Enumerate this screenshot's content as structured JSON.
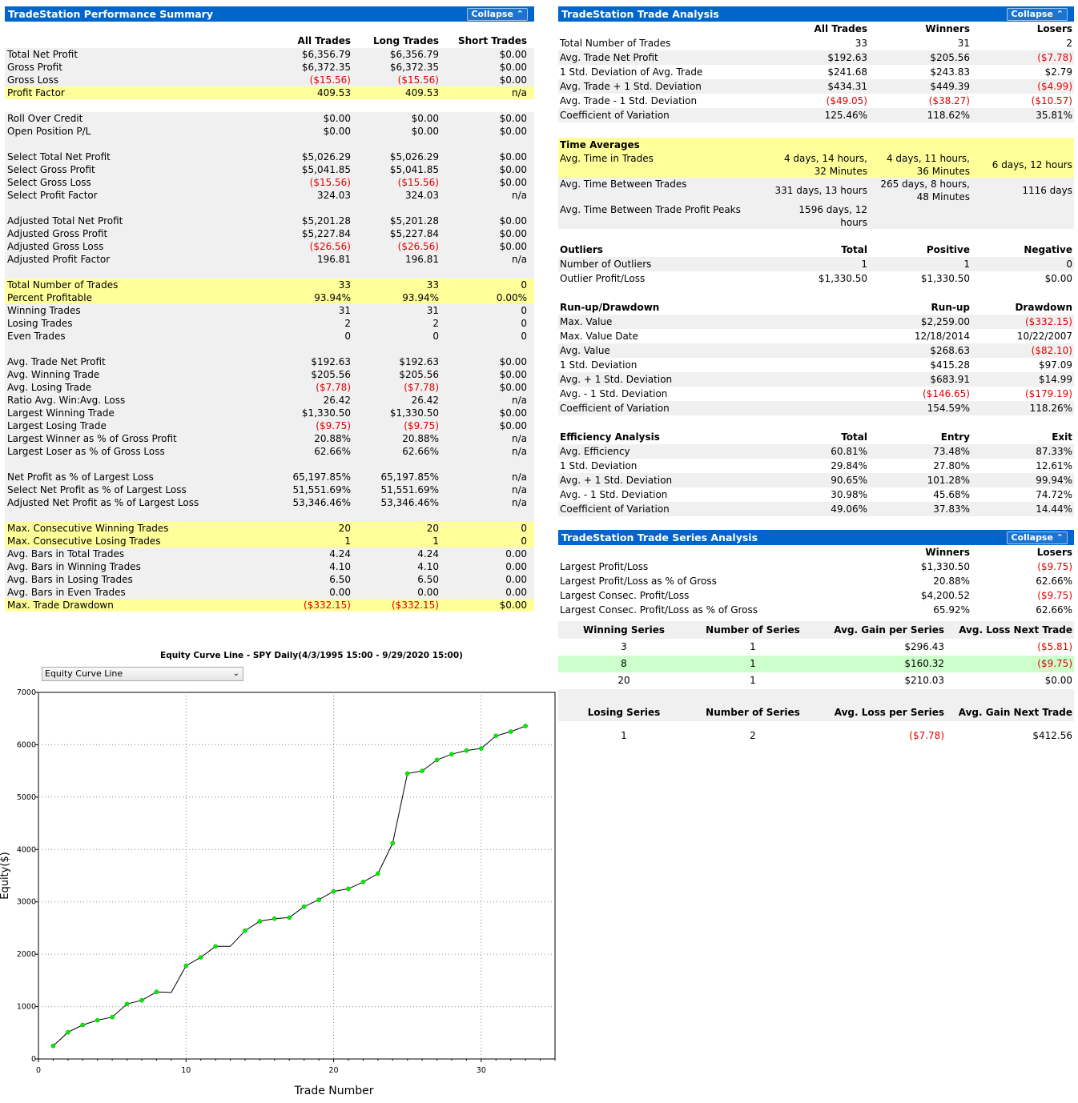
{
  "perf": {
    "title": "TradeStation Performance Summary",
    "collapse": "Collapse",
    "headers": [
      "All Trades",
      "Long Trades",
      "Short Trades"
    ],
    "rows": [
      {
        "label": "Total Net Profit",
        "v": [
          "$6,356.79",
          "$6,356.79",
          "$0.00"
        ],
        "bg": "shade"
      },
      {
        "label": "Gross Profit",
        "v": [
          "$6,372.35",
          "$6,372.35",
          "$0.00"
        ],
        "bg": "shade"
      },
      {
        "label": "Gross Loss",
        "v": [
          "($15.56)",
          "($15.56)",
          "$0.00"
        ],
        "bg": "shade"
      },
      {
        "label": "Profit Factor",
        "v": [
          "409.53",
          "409.53",
          "n/a"
        ],
        "bg": "yellow"
      },
      {
        "label": "",
        "v": [
          "",
          "",
          ""
        ],
        "bg": "white"
      },
      {
        "label": "Roll Over Credit",
        "v": [
          "$0.00",
          "$0.00",
          "$0.00"
        ],
        "bg": "shade"
      },
      {
        "label": "Open Position P/L",
        "v": [
          "$0.00",
          "$0.00",
          "$0.00"
        ],
        "bg": "shade"
      },
      {
        "label": "",
        "v": [
          "",
          "",
          ""
        ],
        "bg": "shade"
      },
      {
        "label": "Select Total Net Profit",
        "v": [
          "$5,026.29",
          "$5,026.29",
          "$0.00"
        ],
        "bg": "shade"
      },
      {
        "label": "Select Gross Profit",
        "v": [
          "$5,041.85",
          "$5,041.85",
          "$0.00"
        ],
        "bg": "shade"
      },
      {
        "label": "Select Gross Loss",
        "v": [
          "($15.56)",
          "($15.56)",
          "$0.00"
        ],
        "bg": "shade"
      },
      {
        "label": "Select Profit Factor",
        "v": [
          "324.03",
          "324.03",
          "n/a"
        ],
        "bg": "shade"
      },
      {
        "label": "",
        "v": [
          "",
          "",
          ""
        ],
        "bg": "shade"
      },
      {
        "label": "Adjusted Total Net Profit",
        "v": [
          "$5,201.28",
          "$5,201.28",
          "$0.00"
        ],
        "bg": "shade"
      },
      {
        "label": "Adjusted Gross Profit",
        "v": [
          "$5,227.84",
          "$5,227.84",
          "$0.00"
        ],
        "bg": "shade"
      },
      {
        "label": "Adjusted Gross Loss",
        "v": [
          "($26.56)",
          "($26.56)",
          "$0.00"
        ],
        "bg": "shade"
      },
      {
        "label": "Adjusted Profit Factor",
        "v": [
          "196.81",
          "196.81",
          "n/a"
        ],
        "bg": "shade"
      },
      {
        "label": "",
        "v": [
          "",
          "",
          ""
        ],
        "bg": "shade"
      },
      {
        "label": "Total Number of Trades",
        "v": [
          "33",
          "33",
          "0"
        ],
        "bg": "yellow"
      },
      {
        "label": "Percent Profitable",
        "v": [
          "93.94%",
          "93.94%",
          "0.00%"
        ],
        "bg": "yellow"
      },
      {
        "label": "Winning Trades",
        "v": [
          "31",
          "31",
          "0"
        ],
        "bg": "shade"
      },
      {
        "label": "Losing Trades",
        "v": [
          "2",
          "2",
          "0"
        ],
        "bg": "shade"
      },
      {
        "label": "Even Trades",
        "v": [
          "0",
          "0",
          "0"
        ],
        "bg": "shade"
      },
      {
        "label": "",
        "v": [
          "",
          "",
          ""
        ],
        "bg": "shade"
      },
      {
        "label": "Avg. Trade Net Profit",
        "v": [
          "$192.63",
          "$192.63",
          "$0.00"
        ],
        "bg": "shade"
      },
      {
        "label": "Avg. Winning Trade",
        "v": [
          "$205.56",
          "$205.56",
          "$0.00"
        ],
        "bg": "shade"
      },
      {
        "label": "Avg. Losing Trade",
        "v": [
          "($7.78)",
          "($7.78)",
          "$0.00"
        ],
        "bg": "shade"
      },
      {
        "label": "Ratio Avg. Win:Avg. Loss",
        "v": [
          "26.42",
          "26.42",
          "n/a"
        ],
        "bg": "shade"
      },
      {
        "label": "Largest Winning Trade",
        "v": [
          "$1,330.50",
          "$1,330.50",
          "$0.00"
        ],
        "bg": "shade"
      },
      {
        "label": "Largest Losing Trade",
        "v": [
          "($9.75)",
          "($9.75)",
          "$0.00"
        ],
        "bg": "shade"
      },
      {
        "label": "Largest Winner as % of Gross Profit",
        "v": [
          "20.88%",
          "20.88%",
          "n/a"
        ],
        "bg": "shade"
      },
      {
        "label": "Largest Loser as % of Gross Loss",
        "v": [
          "62.66%",
          "62.66%",
          "n/a"
        ],
        "bg": "shade"
      },
      {
        "label": "",
        "v": [
          "",
          "",
          ""
        ],
        "bg": "shade"
      },
      {
        "label": "Net Profit as % of Largest Loss",
        "v": [
          "65,197.85%",
          "65,197.85%",
          "n/a"
        ],
        "bg": "shade"
      },
      {
        "label": "Select Net Profit as % of Largest Loss",
        "v": [
          "51,551.69%",
          "51,551.69%",
          "n/a"
        ],
        "bg": "shade"
      },
      {
        "label": "Adjusted Net Profit as % of Largest Loss",
        "v": [
          "53,346.46%",
          "53,346.46%",
          "n/a"
        ],
        "bg": "shade"
      },
      {
        "label": "",
        "v": [
          "",
          "",
          ""
        ],
        "bg": "shade"
      },
      {
        "label": "Max. Consecutive Winning Trades",
        "v": [
          "20",
          "20",
          "0"
        ],
        "bg": "yellow"
      },
      {
        "label": "Max. Consecutive Losing Trades",
        "v": [
          "1",
          "1",
          "0"
        ],
        "bg": "yellow"
      },
      {
        "label": "Avg. Bars in Total Trades",
        "v": [
          "4.24",
          "4.24",
          "0.00"
        ],
        "bg": "shade"
      },
      {
        "label": "Avg. Bars in Winning Trades",
        "v": [
          "4.10",
          "4.10",
          "0.00"
        ],
        "bg": "shade"
      },
      {
        "label": "Avg. Bars in Losing Trades",
        "v": [
          "6.50",
          "6.50",
          "0.00"
        ],
        "bg": "shade"
      },
      {
        "label": "Avg. Bars in Even Trades",
        "v": [
          "0.00",
          "0.00",
          "0.00"
        ],
        "bg": "shade"
      },
      {
        "label": "Max. Trade Drawdown",
        "v": [
          "($332.15)",
          "($332.15)",
          "$0.00"
        ],
        "bg": "yellow"
      }
    ]
  },
  "analysis": {
    "title": "TradeStation Trade Analysis",
    "collapse": "Collapse",
    "headers": [
      "All Trades",
      "Winners",
      "Losers"
    ],
    "rows": [
      {
        "label": "Total Number of Trades",
        "v": [
          "33",
          "31",
          "2"
        ]
      },
      {
        "label": "Avg. Trade Net Profit",
        "v": [
          "$192.63",
          "$205.56",
          "($7.78)"
        ]
      },
      {
        "label": "1 Std. Deviation of Avg. Trade",
        "v": [
          "$241.68",
          "$243.83",
          "$2.79"
        ]
      },
      {
        "label": "Avg. Trade + 1 Std. Deviation",
        "v": [
          "$434.31",
          "$449.39",
          "($4.99)"
        ]
      },
      {
        "label": "Avg. Trade - 1 Std. Deviation",
        "v": [
          "($49.05)",
          "($38.27)",
          "($10.57)"
        ]
      },
      {
        "label": "Coefficient of Variation",
        "v": [
          "125.46%",
          "118.62%",
          "35.81%"
        ]
      }
    ],
    "time": {
      "title": "Time Averages",
      "rows": [
        {
          "label": "Avg. Time in Trades",
          "v": [
            [
              "4 days, 14 hours,",
              "32 Minutes"
            ],
            [
              "4 days, 11 hours,",
              "36 Minutes"
            ],
            [
              "6 days, 12 hours"
            ]
          ]
        },
        {
          "label": "Avg. Time Between Trades",
          "v": [
            [
              "331 days, 13 hours"
            ],
            [
              "265 days, 8 hours,",
              "48 Minutes"
            ],
            [
              "1116 days"
            ]
          ]
        },
        {
          "label": "Avg. Time Between Trade Profit Peaks",
          "v": [
            [
              "1596 days, 12",
              "hours"
            ],
            [
              ""
            ],
            [
              ""
            ]
          ]
        }
      ]
    },
    "outliers": {
      "title": "Outliers",
      "headers": [
        "Total",
        "Positive",
        "Negative"
      ],
      "rows": [
        {
          "label": "Number of Outliers",
          "v": [
            "1",
            "1",
            "0"
          ]
        },
        {
          "label": "Outlier Profit/Loss",
          "v": [
            "$1,330.50",
            "$1,330.50",
            "$0.00"
          ]
        }
      ]
    },
    "runup": {
      "title": "Run-up/Drawdown",
      "headers": [
        "Run-up",
        "Drawdown"
      ],
      "rows": [
        {
          "label": "Max. Value",
          "v": [
            "$2,259.00",
            "($332.15)"
          ]
        },
        {
          "label": "Max. Value Date",
          "v": [
            "12/18/2014",
            "10/22/2007"
          ]
        },
        {
          "label": "Avg. Value",
          "v": [
            "$268.63",
            "($82.10)"
          ]
        },
        {
          "label": "1 Std. Deviation",
          "v": [
            "$415.28",
            "$97.09"
          ]
        },
        {
          "label": "Avg. + 1 Std. Deviation",
          "v": [
            "$683.91",
            "$14.99"
          ]
        },
        {
          "label": "Avg. - 1 Std. Deviation",
          "v": [
            "($146.65)",
            "($179.19)"
          ]
        },
        {
          "label": "Coefficient of Variation",
          "v": [
            "154.59%",
            "118.26%"
          ]
        }
      ]
    },
    "efficiency": {
      "title": "Efficiency Analysis",
      "headers": [
        "Total",
        "Entry",
        "Exit"
      ],
      "rows": [
        {
          "label": "Avg. Efficiency",
          "v": [
            "60.81%",
            "73.48%",
            "87.33%"
          ]
        },
        {
          "label": "1 Std. Deviation",
          "v": [
            "29.84%",
            "27.80%",
            "12.61%"
          ]
        },
        {
          "label": "Avg. + 1 Std. Deviation",
          "v": [
            "90.65%",
            "101.28%",
            "99.94%"
          ]
        },
        {
          "label": "Avg. - 1 Std. Deviation",
          "v": [
            "30.98%",
            "45.68%",
            "74.72%"
          ]
        },
        {
          "label": "Coefficient of Variation",
          "v": [
            "49.06%",
            "37.83%",
            "14.44%"
          ]
        }
      ]
    }
  },
  "series": {
    "title": "TradeStation Trade Series Analysis",
    "collapse": "Collapse",
    "headers": [
      "Winners",
      "Losers"
    ],
    "rows": [
      {
        "label": "Largest Profit/Loss",
        "v": [
          "$1,330.50",
          "($9.75)"
        ]
      },
      {
        "label": "Largest Profit/Loss as % of Gross",
        "v": [
          "20.88%",
          "62.66%"
        ]
      },
      {
        "label": "Largest Consec. Profit/Loss",
        "v": [
          "$4,200.52",
          "($9.75)"
        ]
      },
      {
        "label": "Largest Consec. Profit/Loss as % of Gross",
        "v": [
          "65.92%",
          "62.66%"
        ]
      }
    ],
    "win_headers": [
      "Winning Series",
      "Number of Series",
      "Avg. Gain per Series",
      "Avg. Loss Next Trade"
    ],
    "win_rows": [
      {
        "v": [
          "3",
          "1",
          "$296.43",
          "($5.81)"
        ]
      },
      {
        "v": [
          "8",
          "1",
          "$160.32",
          "($9.75)"
        ]
      },
      {
        "v": [
          "20",
          "1",
          "$210.03",
          "$0.00"
        ]
      }
    ],
    "lose_headers": [
      "Losing Series",
      "Number of Series",
      "Avg. Loss per Series",
      "Avg. Gain Next Trade"
    ],
    "lose_rows": [
      {
        "v": [
          "1",
          "2",
          "($7.78)",
          "$412.56"
        ]
      }
    ]
  },
  "chart": {
    "dropdown": "Equity Curve Line",
    "colors": {
      "line": "#000000",
      "marker": "#00ee00",
      "grid": "#888888"
    }
  },
  "chart_data": {
    "type": "line",
    "title": "Equity Curve Line - SPY Daily(4/3/1995 15:00 - 9/29/2020 15:00)",
    "xlabel": "Trade Number",
    "ylabel": "Equity($)",
    "xlim": [
      0,
      35
    ],
    "ylim": [
      0,
      7000
    ],
    "xticks": [
      0,
      10,
      20,
      30
    ],
    "yticks": [
      0,
      1000,
      2000,
      3000,
      4000,
      5000,
      6000,
      7000
    ],
    "grid": true,
    "x": [
      1,
      2,
      3,
      4,
      5,
      6,
      7,
      8,
      9,
      10,
      11,
      12,
      13,
      14,
      15,
      16,
      17,
      18,
      19,
      20,
      21,
      22,
      23,
      24,
      25,
      26,
      27,
      28,
      29,
      30,
      31,
      32,
      33
    ],
    "y": [
      250,
      510,
      650,
      740,
      800,
      1050,
      1120,
      1280,
      1270,
      1780,
      1940,
      2150,
      2150,
      2450,
      2630,
      2680,
      2700,
      2910,
      3040,
      3200,
      3250,
      3380,
      3540,
      4120,
      5450,
      5500,
      5710,
      5820,
      5890,
      5930,
      6170,
      6250,
      6357
    ],
    "markers": [
      1,
      1,
      1,
      1,
      1,
      1,
      1,
      1,
      0,
      1,
      1,
      1,
      0,
      1,
      1,
      1,
      1,
      1,
      1,
      1,
      1,
      1,
      1,
      1,
      1,
      1,
      1,
      1,
      1,
      1,
      1,
      1,
      1
    ]
  }
}
